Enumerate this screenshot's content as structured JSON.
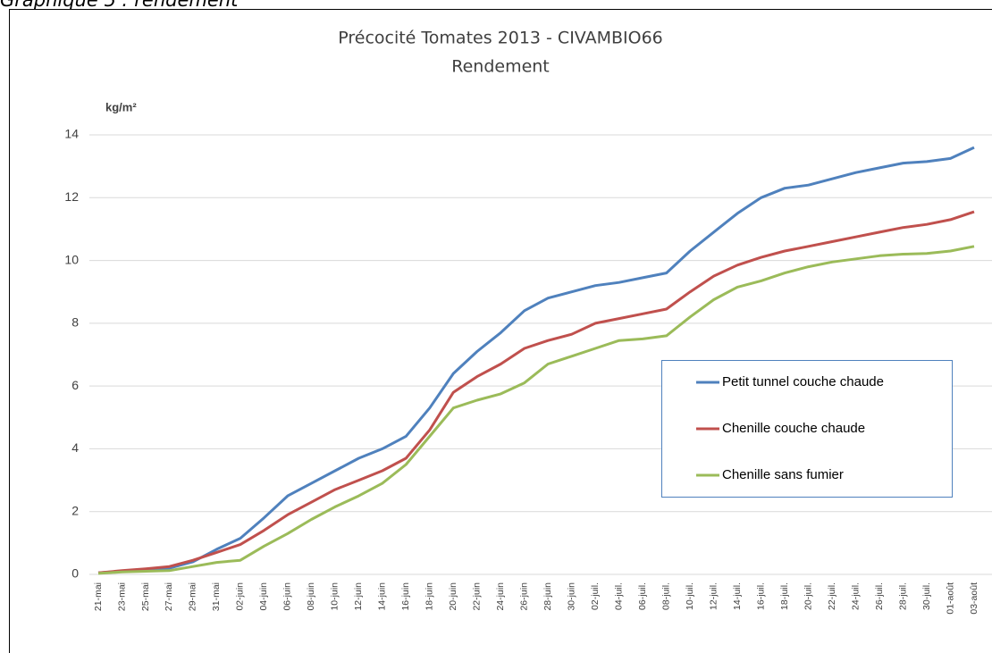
{
  "heading": "Graphique 5 : rendement",
  "chart_data": {
    "type": "line",
    "title": "Précocité Tomates 2013 - CIVAMBIO66",
    "subtitle": "Rendement",
    "y_label": "kg/m²",
    "categories": [
      "21-mai",
      "23-mai",
      "25-mai",
      "27-mai",
      "29-mai",
      "31-mai",
      "02-juin",
      "04-juin",
      "06-juin",
      "08-juin",
      "10-juin",
      "12-juin",
      "14-juin",
      "16-juin",
      "18-juin",
      "20-juin",
      "22-juin",
      "24-juin",
      "26-juin",
      "28-juin",
      "30-juin",
      "02-juil.",
      "04-juil.",
      "06-juil.",
      "08-juil.",
      "10-juil.",
      "12-juil.",
      "14-juil.",
      "16-juil.",
      "18-juil.",
      "20-juil.",
      "22-juil.",
      "24-juil.",
      "26-juil.",
      "28-juil.",
      "30-juil.",
      "01-août",
      "03-août"
    ],
    "series": [
      {
        "name": "Petit tunnel couche chaude",
        "color": "#4f81bd",
        "values": [
          0.05,
          0.1,
          0.15,
          0.2,
          0.4,
          0.8,
          1.15,
          1.8,
          2.5,
          2.9,
          3.3,
          3.7,
          4.0,
          4.4,
          5.3,
          6.4,
          7.1,
          7.7,
          8.4,
          8.8,
          9.0,
          9.2,
          9.3,
          9.45,
          9.6,
          10.3,
          10.9,
          11.5,
          12.0,
          12.3,
          12.4,
          12.6,
          12.8,
          12.95,
          13.1,
          13.15,
          13.25,
          13.6
        ]
      },
      {
        "name": "Chenille couche chaude",
        "color": "#c0504d",
        "values": [
          0.05,
          0.12,
          0.18,
          0.25,
          0.45,
          0.7,
          0.95,
          1.4,
          1.9,
          2.3,
          2.7,
          3.0,
          3.3,
          3.7,
          4.6,
          5.8,
          6.3,
          6.7,
          7.2,
          7.45,
          7.65,
          8.0,
          8.15,
          8.3,
          8.45,
          9.0,
          9.5,
          9.85,
          10.1,
          10.3,
          10.45,
          10.6,
          10.75,
          10.9,
          11.05,
          11.15,
          11.3,
          11.55
        ]
      },
      {
        "name": "Chenille sans fumier",
        "color": "#9bbb59",
        "values": [
          0.03,
          0.08,
          0.1,
          0.12,
          0.25,
          0.38,
          0.45,
          0.9,
          1.3,
          1.75,
          2.15,
          2.5,
          2.9,
          3.5,
          4.4,
          5.3,
          5.55,
          5.75,
          6.1,
          6.7,
          6.95,
          7.2,
          7.45,
          7.5,
          7.6,
          8.2,
          8.75,
          9.15,
          9.35,
          9.6,
          9.8,
          9.95,
          10.05,
          10.15,
          10.2,
          10.22,
          10.3,
          10.45
        ]
      }
    ],
    "ylim": [
      0,
      14
    ],
    "yticks": [
      0,
      2,
      4,
      6,
      8,
      10,
      12,
      14
    ],
    "grid": true,
    "legend": "right"
  }
}
